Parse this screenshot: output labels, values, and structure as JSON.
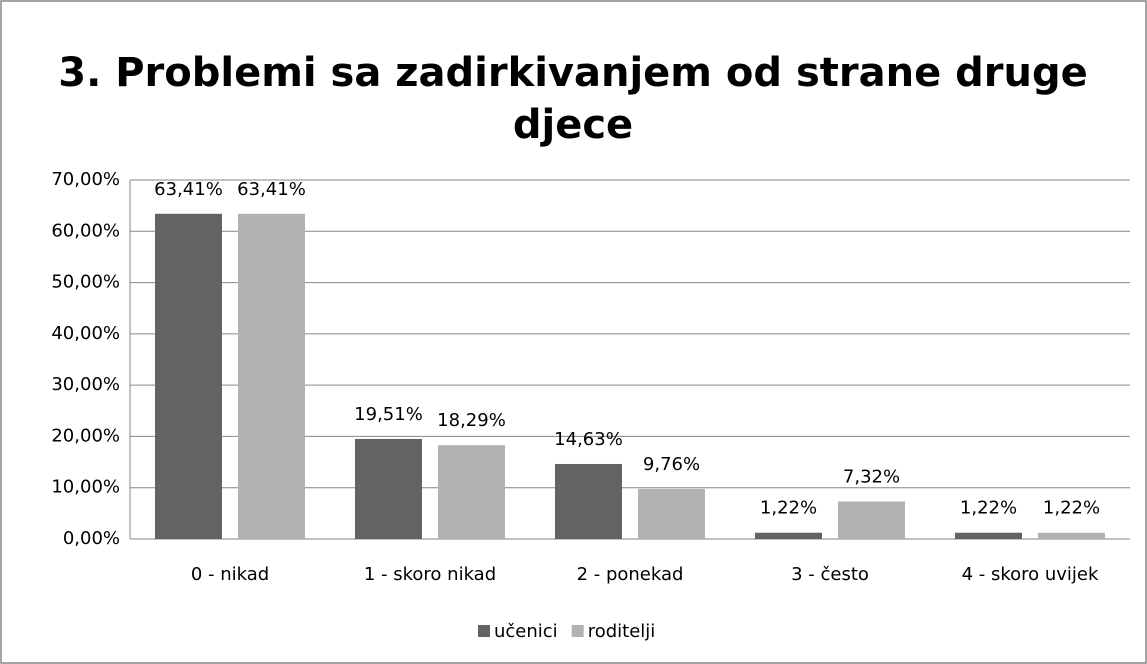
{
  "chart_data": {
    "type": "bar",
    "title": "3. Problemi sa zadirkivanjem od strane druge djece",
    "categories": [
      "0 - nikad",
      "1 - skoro nikad",
      "2 - ponekad",
      "3 - često",
      "4 - skoro uvijek"
    ],
    "series": [
      {
        "name": "učenici",
        "color": "#636363",
        "values": [
          63.41,
          19.51,
          14.63,
          1.22,
          1.22
        ],
        "value_labels": [
          "63,41%",
          "19,51%",
          "14,63%",
          "1,22%",
          "1,22%"
        ]
      },
      {
        "name": "roditelji",
        "color": "#b2b2b2",
        "values": [
          63.41,
          18.29,
          9.76,
          7.32,
          1.22
        ],
        "value_labels": [
          "63,41%",
          "18,29%",
          "9,76%",
          "7,32%",
          "1,22%"
        ]
      }
    ],
    "ylim": [
      0,
      70
    ],
    "yticks": [
      {
        "value": 0,
        "label": "0,00%"
      },
      {
        "value": 10,
        "label": "10,00%"
      },
      {
        "value": 20,
        "label": "20,00%"
      },
      {
        "value": 30,
        "label": "30,00%"
      },
      {
        "value": 40,
        "label": "40,00%"
      },
      {
        "value": 50,
        "label": "50,00%"
      },
      {
        "value": 60,
        "label": "60,00%"
      },
      {
        "value": 70,
        "label": "70,00%"
      }
    ],
    "grid": true,
    "legend": "bottom"
  }
}
